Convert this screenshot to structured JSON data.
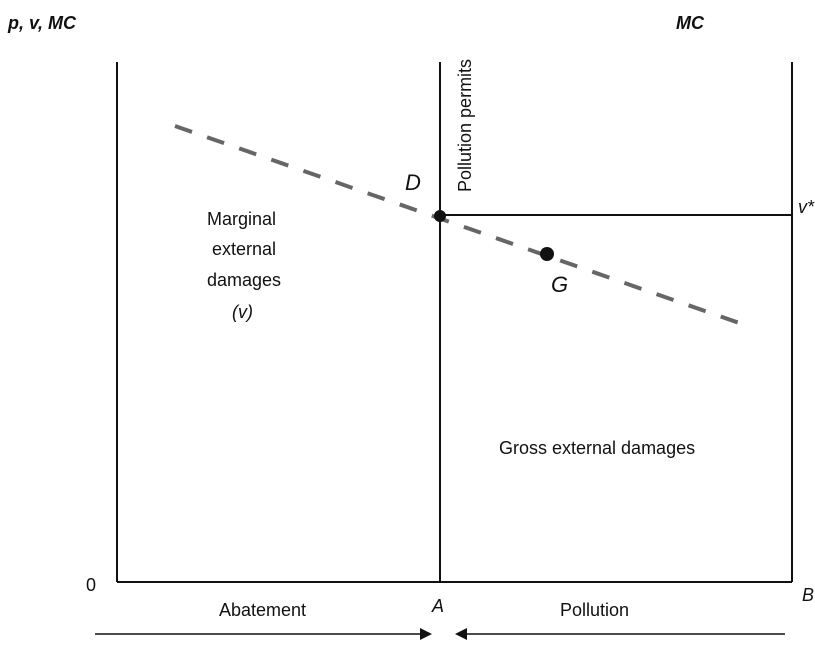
{
  "axis": {
    "left_label": "p, v, MC",
    "right_label": "MC",
    "origin": "0",
    "a_label": "A",
    "b_label": "B"
  },
  "labels": {
    "pollution_permits": "Pollution permits",
    "d": "D",
    "g": "G",
    "v_star": "v*",
    "marginal_line1": "Marginal",
    "marginal_line2": "external",
    "marginal_line3": "damages",
    "marginal_line4": "(v)",
    "gross": "Gross external damages",
    "abatement": "Abatement",
    "pollution": "Pollution"
  },
  "colors": {
    "ink": "#111111",
    "dash": "#555555"
  }
}
